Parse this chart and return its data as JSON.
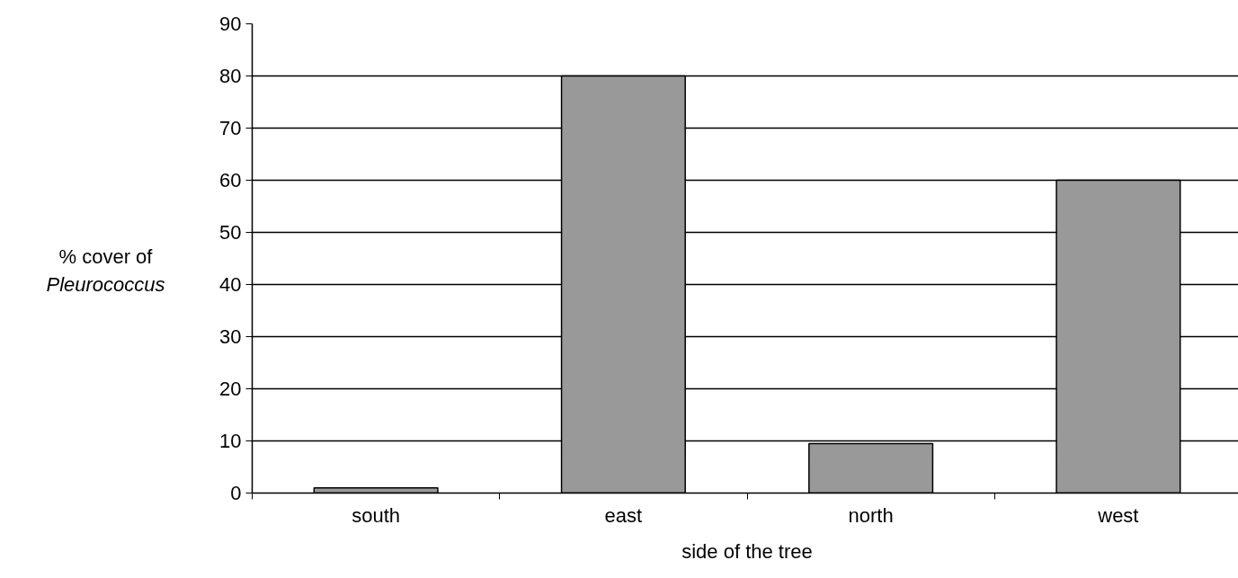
{
  "chart_data": {
    "type": "bar",
    "categories": [
      "south",
      "east",
      "north",
      "west"
    ],
    "values": [
      1,
      80,
      9.5,
      60
    ],
    "color": "#999999",
    "xlabel": "side of the tree",
    "ylabel": "% cover of Pleurococcus",
    "ylim": [
      0,
      90
    ],
    "yticks": [
      0,
      10,
      20,
      30,
      40,
      50,
      60,
      70,
      80,
      90
    ],
    "grid": "y"
  }
}
